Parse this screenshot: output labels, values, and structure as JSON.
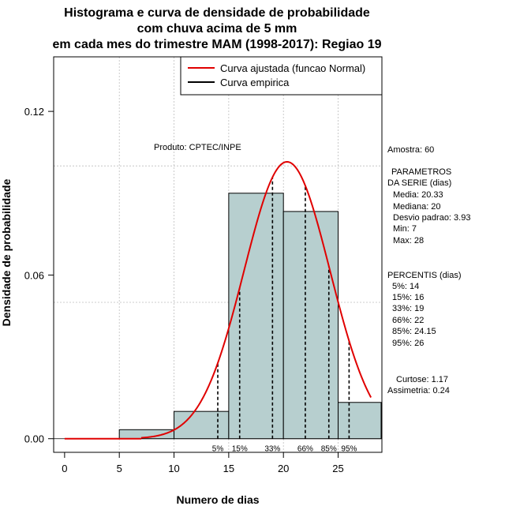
{
  "chart_data": {
    "type": "histogram",
    "title_lines": [
      "Histograma e curva de densidade de probabilidade",
      "com chuva acima de 5 mm",
      "em cada mes do trimestre MAM (1998-2017): Regiao 19"
    ],
    "xlabel": "Numero de dias",
    "ylabel": "Densidade de probabilidade",
    "xlim": [
      -1,
      29
    ],
    "ylim": [
      -0.005,
      0.14
    ],
    "x_ticks": [
      0,
      5,
      10,
      15,
      20,
      25
    ],
    "y_ticks": [
      0.0,
      0.06,
      0.12
    ],
    "y_tick_labels": [
      "0.00",
      "0.06",
      "0.12"
    ],
    "grid_x": [
      5,
      10,
      15,
      20,
      25
    ],
    "grid_y": [
      0.05,
      0.1
    ],
    "bins": [
      {
        "from": 5,
        "to": 10,
        "density": 0.0033
      },
      {
        "from": 10,
        "to": 15,
        "density": 0.01
      },
      {
        "from": 15,
        "to": 20,
        "density": 0.09
      },
      {
        "from": 20,
        "to": 25,
        "density": 0.0833
      },
      {
        "from": 25,
        "to": 30,
        "density": 0.0133
      }
    ],
    "fitted_curve": {
      "name": "Curva ajustada (funcao Normal)",
      "mean": 20.33,
      "sd": 3.93,
      "x_from": 7,
      "x_to": 28,
      "color": "#e00000"
    },
    "empirical_curve": {
      "name": "Curva empirica",
      "color": "#000000"
    },
    "percentile_lines": [
      {
        "label": "5%",
        "x": 14
      },
      {
        "label": "15%",
        "x": 16
      },
      {
        "label": "33%",
        "x": 19
      },
      {
        "label": "66%",
        "x": 22
      },
      {
        "label": "85%",
        "x": 24.15
      },
      {
        "label": "95%",
        "x": 26
      }
    ],
    "bar_color": "#b7cfcf",
    "product_label": "Produto: CPTEC/INPE",
    "legend_position": "top-right"
  },
  "stats": {
    "amostra": "Amostra: 60",
    "param_title_1": "PARAMETROS",
    "param_title_2": "DA SERIE (dias)",
    "media": "Media: 20.33",
    "mediana": "Mediana: 20",
    "desvio": "Desvio padrao: 3.93",
    "min": "Min: 7",
    "max": "Max: 28",
    "percentis_title": "PERCENTIS (dias)",
    "p5": "5%: 14",
    "p15": "15%: 16",
    "p33": "33%: 19",
    "p66": "66%: 22",
    "p85": "85%: 24.15",
    "p95": "95%: 26",
    "curtose": "Curtose: 1.17",
    "assimetria": "Assimetria: 0.24"
  }
}
